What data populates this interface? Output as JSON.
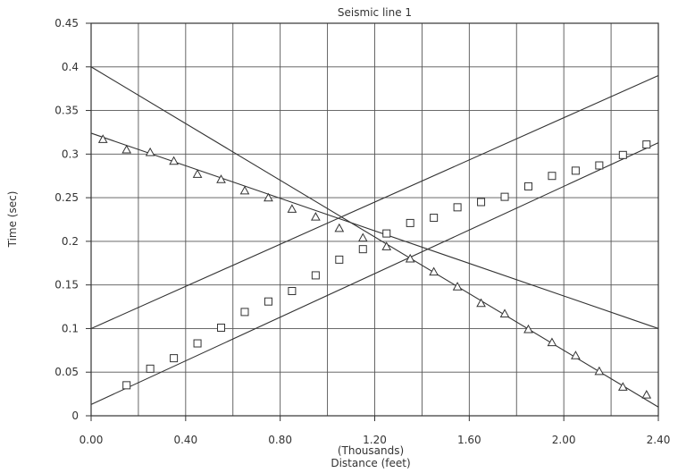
{
  "chart_data": {
    "type": "scatter",
    "title": "Seismic line 1",
    "xlabel": "Distance (feet)",
    "xunit_label": "(Thousands)",
    "ylabel": "Time (sec)",
    "xlim": [
      0,
      2.4
    ],
    "ylim": [
      0,
      0.45
    ],
    "grid": true,
    "x_ticks": [
      {
        "value": 0.0,
        "label": "0.00"
      },
      {
        "value": 0.4,
        "label": "0.40"
      },
      {
        "value": 0.8,
        "label": "0.80"
      },
      {
        "value": 1.2,
        "label": "1.20"
      },
      {
        "value": 1.6,
        "label": "1.60"
      },
      {
        "value": 2.0,
        "label": "2.00"
      },
      {
        "value": 2.4,
        "label": "2.40"
      }
    ],
    "x_grid": [
      0.2,
      0.4,
      0.6,
      0.8,
      1.0,
      1.2,
      1.4,
      1.6,
      1.8,
      2.0,
      2.2
    ],
    "y_ticks": [
      {
        "value": 0,
        "label": "0"
      },
      {
        "value": 0.05,
        "label": "0.05"
      },
      {
        "value": 0.1,
        "label": "0.1"
      },
      {
        "value": 0.15,
        "label": "0.15"
      },
      {
        "value": 0.2,
        "label": "0.2"
      },
      {
        "value": 0.25,
        "label": "0.25"
      },
      {
        "value": 0.3,
        "label": "0.3"
      },
      {
        "value": 0.35,
        "label": "0.35"
      },
      {
        "value": 0.4,
        "label": "0.4"
      },
      {
        "value": 0.45,
        "label": "0.45"
      }
    ],
    "series": [
      {
        "marker": "triangle",
        "x": [
          0.05,
          0.15,
          0.25,
          0.35,
          0.45,
          0.55,
          0.65,
          0.75,
          0.85,
          0.95,
          1.05,
          1.15,
          1.25,
          1.35,
          1.45,
          1.55,
          1.65,
          1.75,
          1.85,
          1.95,
          2.05,
          2.15,
          2.25,
          2.35
        ],
        "y": [
          0.317,
          0.305,
          0.302,
          0.292,
          0.277,
          0.271,
          0.258,
          0.25,
          0.237,
          0.228,
          0.215,
          0.204,
          0.194,
          0.18,
          0.165,
          0.148,
          0.129,
          0.117,
          0.099,
          0.084,
          0.069,
          0.051,
          0.033,
          0.024
        ]
      },
      {
        "marker": "square",
        "x": [
          0.15,
          0.25,
          0.35,
          0.45,
          0.55,
          0.65,
          0.75,
          0.85,
          0.95,
          1.05,
          1.15,
          1.25,
          1.35,
          1.45,
          1.55,
          1.65,
          1.75,
          1.85,
          1.95,
          2.05,
          2.15,
          2.25,
          2.35
        ],
        "y": [
          0.035,
          0.054,
          0.066,
          0.083,
          0.101,
          0.119,
          0.131,
          0.143,
          0.161,
          0.179,
          0.191,
          0.209,
          0.221,
          0.227,
          0.239,
          0.245,
          0.251,
          0.263,
          0.275,
          0.281,
          0.287,
          0.299,
          0.311
        ]
      }
    ],
    "lines": [
      {
        "x": [
          0,
          2.4
        ],
        "y": [
          0.324,
          0.1
        ]
      },
      {
        "x": [
          0,
          2.4
        ],
        "y": [
          0.4,
          0.01
        ]
      },
      {
        "x": [
          0,
          2.4
        ],
        "y": [
          0.1,
          0.39
        ]
      },
      {
        "x": [
          0,
          2.4
        ],
        "y": [
          0.013,
          0.313
        ]
      }
    ]
  }
}
